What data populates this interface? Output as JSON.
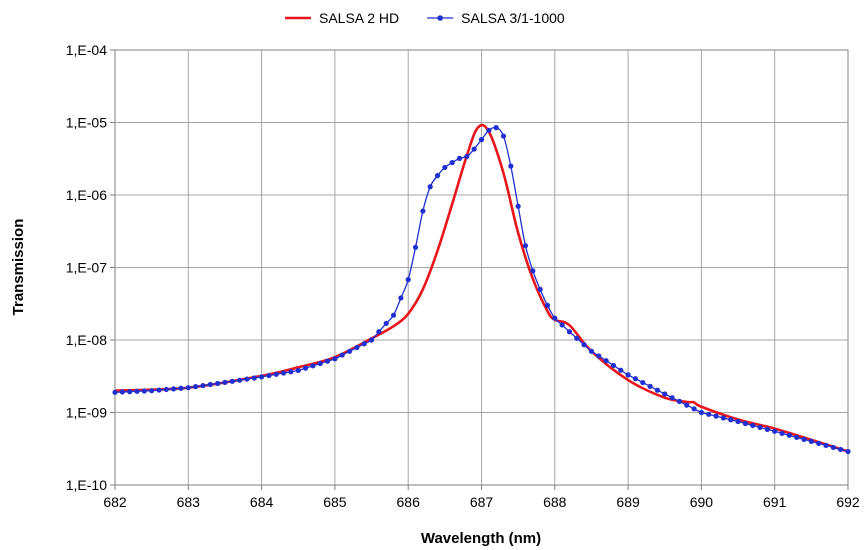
{
  "chart_data": {
    "type": "line",
    "title": "",
    "xlabel": "Wavelength (nm)",
    "ylabel": "Transmission",
    "xlim": [
      682,
      692
    ],
    "ylim": [
      1e-10,
      0.0001
    ],
    "yscale": "log",
    "grid": true,
    "legend_position": "top",
    "x_tick_labels": [
      "682",
      "683",
      "684",
      "685",
      "686",
      "687",
      "688",
      "689",
      "690",
      "691",
      "692"
    ],
    "y_tick_labels": [
      "1,E-10",
      "1,E-09",
      "1,E-08",
      "1,E-07",
      "1,E-06",
      "1,E-05",
      "1,E-04"
    ],
    "series": [
      {
        "name": "SALSA 2 HD",
        "color": "#e8151b",
        "marker": "none",
        "x": [
          682,
          683,
          684,
          684.5,
          685,
          685.5,
          685.8,
          686.0,
          686.2,
          686.4,
          686.6,
          686.8,
          686.95,
          687.1,
          687.3,
          687.5,
          687.7,
          687.9,
          688.0,
          688.2,
          688.5,
          689.0,
          689.5,
          689.8,
          689.9,
          690.0,
          690.5,
          691.0,
          691.5,
          692
        ],
        "y": [
          2e-09,
          2.2e-09,
          3.2e-09,
          4.2e-09,
          5.8e-09,
          1.05e-08,
          1.55e-08,
          2.3e-08,
          5e-08,
          1.7e-07,
          7.5e-07,
          3.5e-06,
          8.5e-06,
          7.5e-06,
          2e-06,
          3e-07,
          7e-08,
          2.5e-08,
          1.9e-08,
          1.6e-08,
          7e-09,
          2.8e-09,
          1.6e-09,
          1.4e-09,
          1.38e-09,
          1.2e-09,
          8e-10,
          6e-10,
          4.2e-10,
          2.9e-10
        ]
      },
      {
        "name": "SALSA 3/1-1000",
        "color": "#1f2fd1",
        "marker": "circle",
        "x": [
          682,
          682.5,
          683,
          683.5,
          684,
          684.5,
          685,
          685.5,
          685.8,
          685.9,
          686.0,
          686.1,
          686.2,
          686.3,
          686.4,
          686.5,
          686.6,
          686.7,
          686.8,
          686.9,
          687.0,
          687.1,
          687.2,
          687.3,
          687.4,
          687.5,
          687.6,
          687.7,
          687.8,
          687.9,
          688.0,
          688.2,
          688.5,
          689.0,
          689.5,
          690.0,
          690.5,
          691.0,
          691.5,
          692
        ],
        "y": [
          1.9e-09,
          2e-09,
          2.2e-09,
          2.6e-09,
          3.1e-09,
          3.8e-09,
          5.5e-09,
          1e-08,
          2.2e-08,
          3.8e-08,
          6.8e-08,
          1.9e-07,
          6e-07,
          1.3e-06,
          1.85e-06,
          2.4e-06,
          2.8e-06,
          3.2e-06,
          3.4e-06,
          4.3e-06,
          5.8e-06,
          7.8e-06,
          8.5e-06,
          6.5e-06,
          2.5e-06,
          7e-07,
          2e-07,
          9e-08,
          5e-08,
          3e-08,
          2e-08,
          1.3e-08,
          7e-09,
          3.3e-09,
          1.8e-09,
          1e-09,
          7.5e-10,
          5.5e-10,
          4e-10,
          2.9e-10
        ]
      }
    ]
  }
}
